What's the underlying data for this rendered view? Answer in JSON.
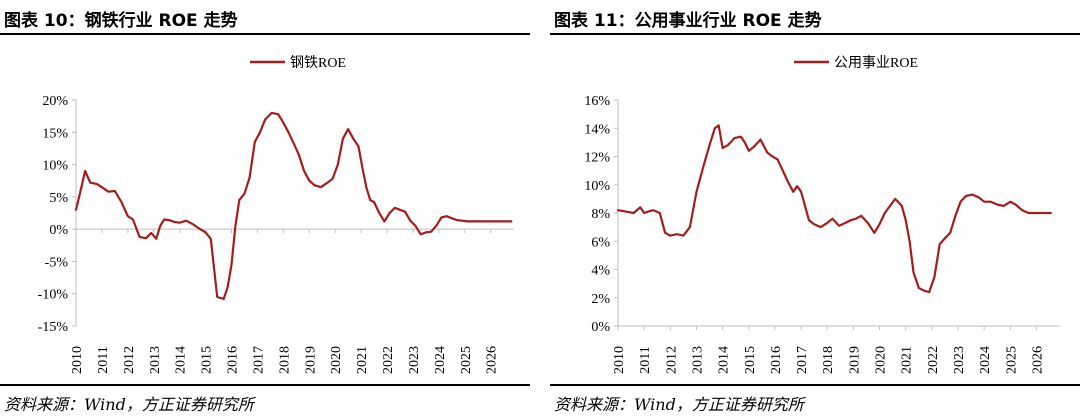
{
  "panels": [
    {
      "title": "图表 10：钢铁行业 ROE 走势",
      "source": "资料来源：Wind，方正证券研究所"
    },
    {
      "title": "图表 11：公用事业行业 ROE 走势",
      "source": "资料来源：Wind，方正证券研究所"
    }
  ],
  "chart_data": [
    {
      "type": "line",
      "title": "",
      "xlabel": "",
      "ylabel": "",
      "legend_position": "top-center",
      "color": "#A51C1C",
      "ylim": [
        -15,
        20
      ],
      "yticks": [
        -15,
        -10,
        -5,
        0,
        5,
        10,
        15,
        20
      ],
      "ytick_labels": [
        "-15%",
        "-10%",
        "-5%",
        "0%",
        "5%",
        "10%",
        "15%",
        "20%"
      ],
      "xlim": [
        2010,
        2026.9
      ],
      "xtick_labels": [
        "2010",
        "2011",
        "2012",
        "2013",
        "2014",
        "2015",
        "2016",
        "2017",
        "2018",
        "2019",
        "2020",
        "2021",
        "2022",
        "2023",
        "2024",
        "2025",
        "2026"
      ],
      "series": [
        {
          "name": "钢铁ROE",
          "x": [
            2010.0,
            2010.15,
            2010.35,
            2010.55,
            2010.8,
            2011.0,
            2011.25,
            2011.5,
            2011.75,
            2012.0,
            2012.2,
            2012.45,
            2012.7,
            2012.9,
            2013.1,
            2013.25,
            2013.4,
            2013.6,
            2013.8,
            2014.0,
            2014.25,
            2014.5,
            2014.75,
            2015.0,
            2015.2,
            2015.45,
            2015.7,
            2015.85,
            2016.0,
            2016.15,
            2016.3,
            2016.5,
            2016.7,
            2016.9,
            2017.1,
            2017.3,
            2017.55,
            2017.8,
            2018.0,
            2018.2,
            2018.4,
            2018.6,
            2018.8,
            2019.0,
            2019.2,
            2019.45,
            2019.7,
            2019.9,
            2020.1,
            2020.3,
            2020.5,
            2020.7,
            2020.9,
            2021.05,
            2021.2,
            2021.35,
            2021.5,
            2021.7,
            2021.9,
            2022.1,
            2022.3,
            2022.5,
            2022.7,
            2022.9,
            2023.1,
            2023.3,
            2023.5,
            2023.7,
            2023.9,
            2024.1,
            2024.3,
            2024.5,
            2024.7,
            2024.9,
            2025.1,
            2025.3,
            2025.5,
            2025.7,
            2025.9,
            2026.1,
            2026.3,
            2026.55,
            2026.8
          ],
          "y": [
            3.0,
            5.5,
            9.0,
            7.2,
            7.0,
            6.5,
            5.8,
            5.9,
            4.2,
            2.0,
            1.5,
            -1.2,
            -1.4,
            -0.6,
            -1.5,
            0.5,
            1.5,
            1.4,
            1.1,
            1.0,
            1.3,
            0.8,
            0.1,
            -0.5,
            -1.5,
            -10.5,
            -10.8,
            -9.0,
            -5.5,
            0.5,
            4.5,
            5.5,
            8.0,
            13.5,
            15.0,
            17.0,
            18.0,
            17.8,
            16.5,
            15.0,
            13.3,
            11.5,
            9.0,
            7.5,
            6.8,
            6.5,
            7.2,
            7.8,
            10.0,
            14.0,
            15.5,
            14.0,
            12.8,
            9.5,
            6.5,
            4.5,
            4.2,
            2.5,
            1.2,
            2.5,
            3.3,
            3.0,
            2.7,
            1.3,
            0.5,
            -0.8,
            -0.5,
            -0.4,
            0.5,
            1.8,
            2.0,
            1.7,
            1.4,
            1.3,
            1.2,
            1.2,
            1.2,
            1.2,
            1.2,
            1.2,
            1.2,
            1.2,
            1.2
          ]
        }
      ]
    },
    {
      "type": "line",
      "title": "",
      "xlabel": "",
      "ylabel": "",
      "legend_position": "top-center",
      "color": "#A51C1C",
      "ylim": [
        0,
        16
      ],
      "yticks": [
        0,
        2,
        4,
        6,
        8,
        10,
        12,
        14,
        16
      ],
      "ytick_labels": [
        "0%",
        "2%",
        "4%",
        "6%",
        "8%",
        "10%",
        "12%",
        "14%",
        "16%"
      ],
      "xlim": [
        2010,
        2026.9
      ],
      "xtick_labels": [
        "2010",
        "2011",
        "2012",
        "2013",
        "2014",
        "2015",
        "2016",
        "2017",
        "2018",
        "2019",
        "2020",
        "2021",
        "2022",
        "2023",
        "2024",
        "2025",
        "2026"
      ],
      "series": [
        {
          "name": "公用事业ROE",
          "x": [
            2010.0,
            2010.3,
            2010.6,
            2010.85,
            2011.0,
            2011.15,
            2011.35,
            2011.6,
            2011.8,
            2012.0,
            2012.25,
            2012.5,
            2012.75,
            2013.0,
            2013.25,
            2013.5,
            2013.7,
            2013.85,
            2014.0,
            2014.2,
            2014.45,
            2014.7,
            2014.85,
            2015.0,
            2015.2,
            2015.45,
            2015.7,
            2015.9,
            2016.1,
            2016.3,
            2016.5,
            2016.7,
            2016.85,
            2017.0,
            2017.15,
            2017.3,
            2017.5,
            2017.75,
            2018.0,
            2018.2,
            2018.45,
            2018.7,
            2018.9,
            2019.1,
            2019.3,
            2019.55,
            2019.8,
            2020.0,
            2020.2,
            2020.4,
            2020.6,
            2020.85,
            2021.0,
            2021.15,
            2021.3,
            2021.5,
            2021.7,
            2021.9,
            2022.1,
            2022.3,
            2022.5,
            2022.7,
            2022.9,
            2023.1,
            2023.3,
            2023.55,
            2023.8,
            2024.0,
            2024.25,
            2024.5,
            2024.75,
            2025.0,
            2025.2,
            2025.45,
            2025.7,
            2025.95,
            2026.15,
            2026.35,
            2026.55
          ],
          "y": [
            8.2,
            8.1,
            8.0,
            8.4,
            8.0,
            8.1,
            8.2,
            8.0,
            6.6,
            6.4,
            6.5,
            6.4,
            7.0,
            9.5,
            11.2,
            12.8,
            14.0,
            14.2,
            12.6,
            12.8,
            13.3,
            13.4,
            13.0,
            12.4,
            12.7,
            13.2,
            12.3,
            12.0,
            11.8,
            11.0,
            10.2,
            9.5,
            9.9,
            9.5,
            8.5,
            7.5,
            7.2,
            7.0,
            7.3,
            7.6,
            7.1,
            7.3,
            7.5,
            7.6,
            7.8,
            7.3,
            6.6,
            7.2,
            8.0,
            8.5,
            9.0,
            8.5,
            7.5,
            6.0,
            3.8,
            2.7,
            2.5,
            2.4,
            3.5,
            5.8,
            6.2,
            6.6,
            7.8,
            8.8,
            9.2,
            9.3,
            9.1,
            8.8,
            8.8,
            8.6,
            8.5,
            8.8,
            8.6,
            8.2,
            8.0,
            8.0,
            8.0,
            8.0,
            8.0
          ]
        }
      ]
    }
  ]
}
